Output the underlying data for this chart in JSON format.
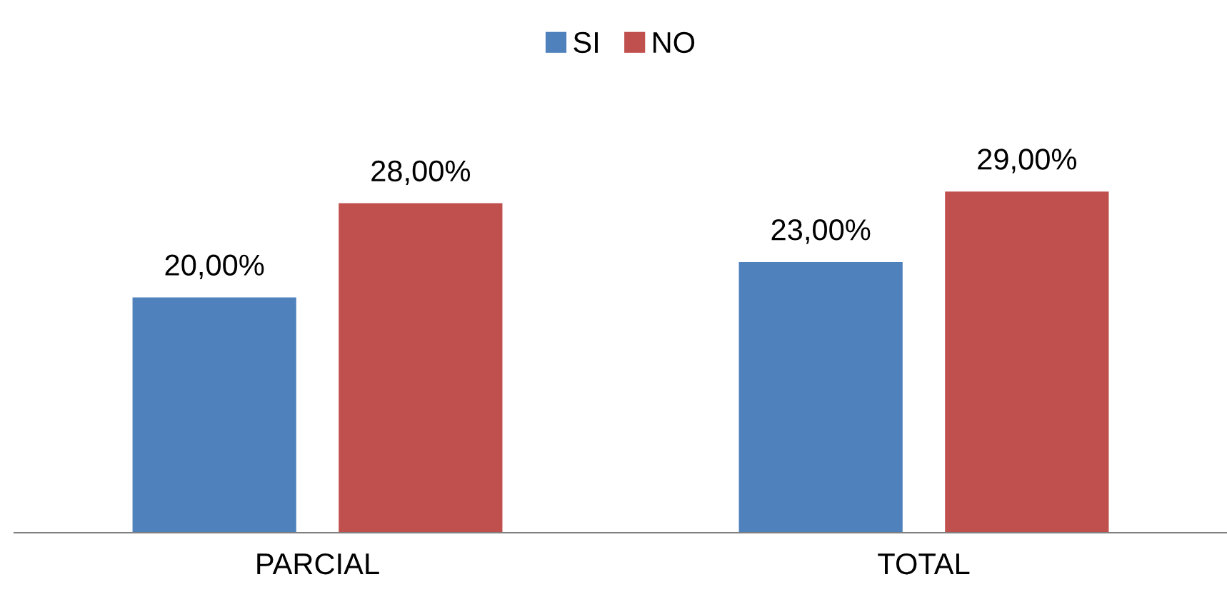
{
  "chart_data": {
    "type": "bar",
    "categories": [
      "PARCIAL",
      "TOTAL"
    ],
    "series": [
      {
        "name": "SI",
        "color": "#4f81bd",
        "values": [
          20,
          23
        ],
        "value_labels": [
          "20,00%",
          "23,00%"
        ]
      },
      {
        "name": "NO",
        "color": "#c0504d",
        "values": [
          28,
          29
        ],
        "value_labels": [
          "28,00%",
          "29,00%"
        ]
      }
    ],
    "tick_labels": "x",
    "legend": "top",
    "grid": false
  }
}
